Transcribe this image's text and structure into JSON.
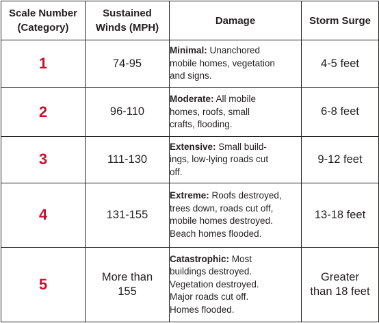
{
  "headers": {
    "category": "Scale Number\n(Category)",
    "winds": "Sustained\nWinds (MPH)",
    "damage": "Damage",
    "surge": "Storm Surge"
  },
  "rows": [
    {
      "category": "1",
      "winds": "74-95",
      "damage_lead": "Minimal:",
      "damage_text": " Unanchored\nmobile homes, vegetation\nand signs.",
      "surge": "4-5 feet"
    },
    {
      "category": "2",
      "winds": "96-110",
      "damage_lead": "Moderate:",
      "damage_text": " All mobile\nhomes, roofs, small\ncrafts, flooding.",
      "surge": "6-8 feet"
    },
    {
      "category": "3",
      "winds": "111-130",
      "damage_lead": "Extensive:",
      "damage_text": " Small build-\nings, low-lying roads cut\noff.",
      "surge": "9-12 feet"
    },
    {
      "category": "4",
      "winds": "131-155",
      "damage_lead": "Extreme:",
      "damage_text": " Roofs destroyed,\ntrees down, roads cut off,\nmobile homes destroyed.\nBeach homes flooded.",
      "surge": "13-18 feet"
    },
    {
      "category": "5",
      "winds": "More than\n155",
      "damage_lead": "Catastrophic:",
      "damage_text": " Most\nbuildings destroyed.\nVegetation destroyed.\nMajor roads cut off.\nHomes flooded.",
      "surge": "Greater\nthan 18 feet"
    }
  ]
}
